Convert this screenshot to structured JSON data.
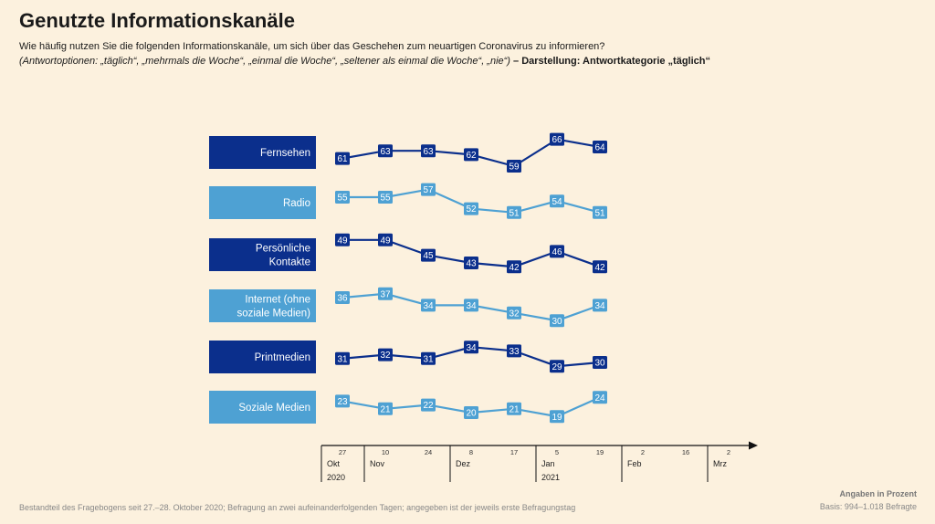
{
  "header": {
    "title": "Genutzte Informationskanäle",
    "question": "Wie häufig nutzen Sie die folgenden Informationskanäle, um sich über das Geschehen zum neuartigen Coronavirus zu informieren?",
    "options_text": "(Antwortoptionen: „täglich“, „mehrmals die Woche“, „einmal die Woche“, „seltener als einmal die Woche“, „nie“)",
    "display_text": " – Darstellung: Antwortkategorie „täglich“"
  },
  "footer": {
    "note": "Bestandteil des Fragebogens seit 27.–28. Oktober 2020; Befragung an zwei aufeinanderfolgenden Tagen; angegeben ist der jeweils erste Befragungstag",
    "unit": "Angaben in Prozent",
    "basis": "Basis: 994–1.018 Befragte"
  },
  "colors": {
    "dark": "#0b2f8c",
    "light": "#4ea1d3",
    "background": "#fcf1de"
  },
  "chart_data": {
    "type": "line",
    "x": [
      "27",
      "10",
      "24",
      "8",
      "17",
      "5",
      "19"
    ],
    "axis_ticks": [
      {
        "day": "27",
        "month": "Okt",
        "year": "2020"
      },
      {
        "day": "10",
        "month": "Nov",
        "year": ""
      },
      {
        "day": "24",
        "month": "",
        "year": ""
      },
      {
        "day": "8",
        "month": "Dez",
        "year": ""
      },
      {
        "day": "17",
        "month": "",
        "year": ""
      },
      {
        "day": "5",
        "month": "Jan",
        "year": "2021"
      },
      {
        "day": "19",
        "month": "",
        "year": ""
      },
      {
        "day": "2",
        "month": "Feb",
        "year": ""
      },
      {
        "day": "16",
        "month": "",
        "year": ""
      },
      {
        "day": "2",
        "month": "Mrz",
        "year": ""
      }
    ],
    "series": [
      {
        "name": "Fernsehen",
        "label_lines": [
          "Fernsehen"
        ],
        "tone": "dark",
        "values": [
          61,
          63,
          63,
          62,
          59,
          66,
          64
        ]
      },
      {
        "name": "Radio",
        "label_lines": [
          "Radio"
        ],
        "tone": "light",
        "values": [
          55,
          55,
          57,
          52,
          51,
          54,
          51
        ]
      },
      {
        "name": "Persönliche Kontakte",
        "label_lines": [
          "Persönliche",
          "Kontakte"
        ],
        "tone": "dark",
        "values": [
          49,
          49,
          45,
          43,
          42,
          46,
          42
        ]
      },
      {
        "name": "Internet (ohne soziale Medien)",
        "label_lines": [
          "Internet (ohne",
          "soziale Medien)"
        ],
        "tone": "light",
        "values": [
          36,
          37,
          34,
          34,
          32,
          30,
          34
        ]
      },
      {
        "name": "Printmedien",
        "label_lines": [
          "Printmedien"
        ],
        "tone": "dark",
        "values": [
          31,
          32,
          31,
          34,
          33,
          29,
          30
        ]
      },
      {
        "name": "Soziale Medien",
        "label_lines": [
          "Soziale Medien"
        ],
        "tone": "light",
        "values": [
          23,
          21,
          22,
          20,
          21,
          19,
          24
        ]
      }
    ]
  }
}
